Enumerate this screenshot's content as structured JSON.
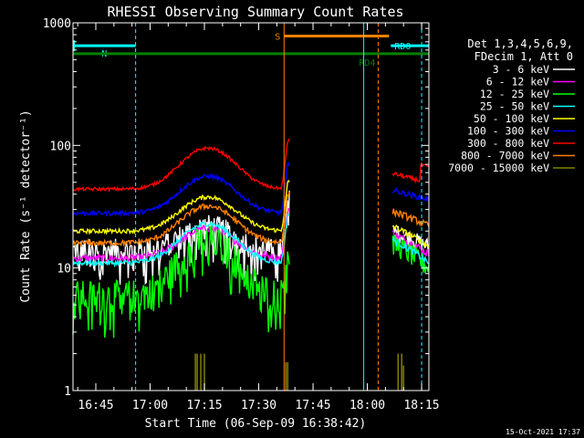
{
  "chart_data": {
    "type": "line",
    "title": "RHESSI Observing Summary Count Rates",
    "xlabel": "Start Time (06-Sep-09 16:38:42)",
    "ylabel": "Count Rate (s⁻¹ detector⁻¹)",
    "x_range": [
      "16:38:42",
      "18:17:00"
    ],
    "ylim": [
      1,
      1000
    ],
    "y_scale": "log",
    "x_ticks": [
      "16:45",
      "17:00",
      "17:15",
      "17:30",
      "17:45",
      "18:00",
      "18:15"
    ],
    "y_ticks": [
      "1",
      "10",
      "100",
      "1000"
    ],
    "timestamp": "15-Oct-2021 17:37",
    "legend": {
      "position": "right",
      "header": [
        "Det 1,3,4,5,6,9,",
        "FDecim 1, Att 0"
      ]
    },
    "series": [
      {
        "name": "3 - 6 keV",
        "color": "#ffffff",
        "base": 14,
        "peak": 22,
        "noise": 0.12,
        "post_flare": 20,
        "post_end": 15
      },
      {
        "name": "6 - 12 keV",
        "color": "#ff00ff",
        "base": 12,
        "peak": 21,
        "noise": 0.07,
        "post_flare": 19,
        "post_end": 13
      },
      {
        "name": "12 - 25 keV",
        "color": "#00ff00",
        "base": 6,
        "peak": 17,
        "noise": 0.16,
        "post_flare": 16,
        "post_end": 10
      },
      {
        "name": "25 - 50 keV",
        "color": "#00ffff",
        "base": 11,
        "peak": 23,
        "noise": 0.05,
        "post_flare": 17,
        "post_end": 11
      },
      {
        "name": "50 - 100 keV",
        "color": "#ffff00",
        "base": 20,
        "peak": 38,
        "noise": 0.04,
        "post_flare": 22,
        "post_end": 15
      },
      {
        "name": "100 - 300 keV",
        "color": "#0000ff",
        "base": 28,
        "peak": 56,
        "noise": 0.04,
        "post_flare": 43,
        "post_end": 36
      },
      {
        "name": "300 - 800 keV",
        "color": "#ff0000",
        "base": 44,
        "peak": 95,
        "noise": 0.03,
        "post_flare": 59,
        "post_end": 49
      },
      {
        "name": "800 - 7000 keV",
        "color": "#ff8000",
        "base": 16,
        "peak": 32,
        "noise": 0.05,
        "post_flare": 29,
        "post_end": 22
      },
      {
        "name": "7000 - 15000 keV",
        "color": "#808000",
        "base": 0,
        "peak": 0,
        "noise": 0,
        "post_flare": 0,
        "post_end": 0
      }
    ],
    "flags": [
      {
        "label": "N",
        "color": "#00ffff",
        "start": "16:38:42",
        "end": "16:56:00",
        "y": 650
      },
      {
        "label": "S",
        "color": "#ff8000",
        "start": "17:37:00",
        "end": "18:06:00",
        "y": 780
      },
      {
        "label": "RD0",
        "color": "#00ffff",
        "start": "18:06:30",
        "end": "18:17:00",
        "y": 650
      },
      {
        "label": "RD4",
        "color": "#008000",
        "start": "16:38:42",
        "end": "18:17:00",
        "y": 560
      }
    ],
    "gaps": [
      {
        "start": "17:38:30",
        "end": "18:07:00"
      }
    ]
  }
}
